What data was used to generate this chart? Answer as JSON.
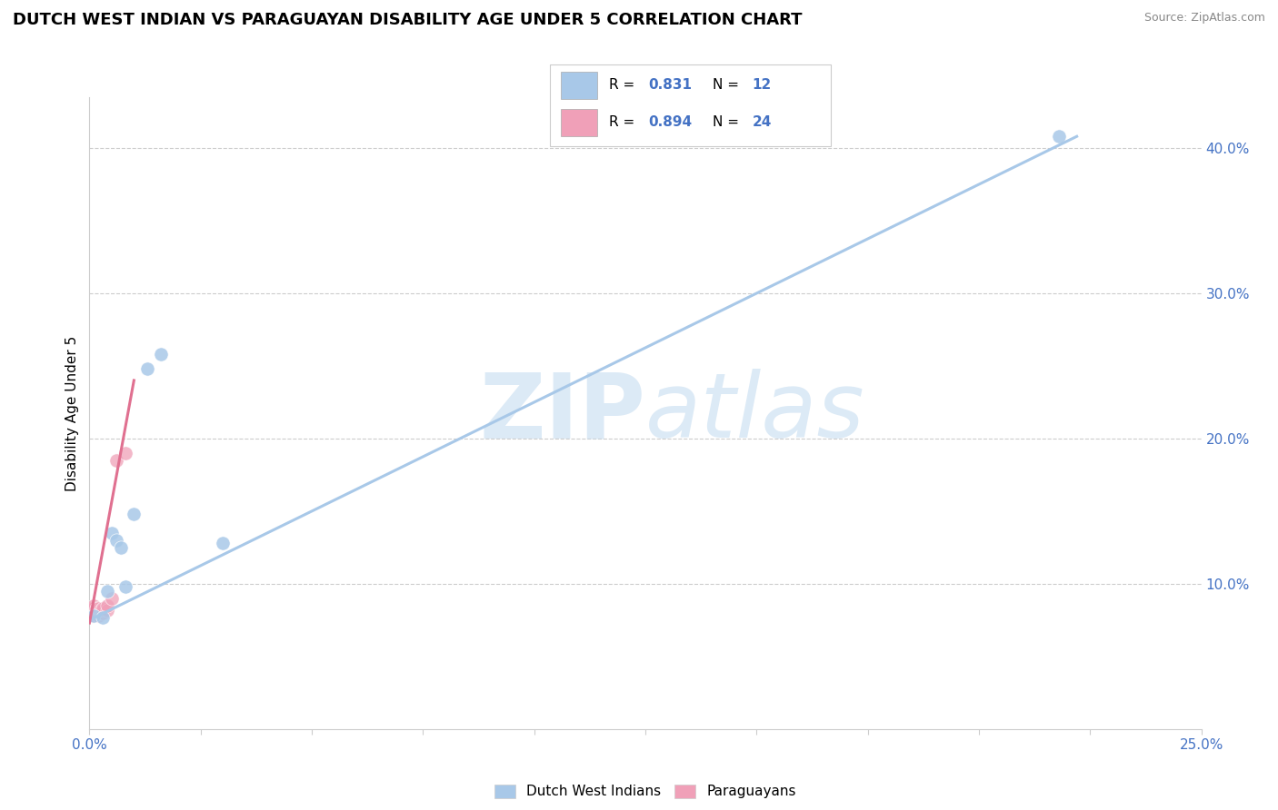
{
  "title": "DUTCH WEST INDIAN VS PARAGUAYAN DISABILITY AGE UNDER 5 CORRELATION CHART",
  "source_text": "Source: ZipAtlas.com",
  "ylabel": "Disability Age Under 5",
  "xlim": [
    0.0,
    0.25
  ],
  "ylim": [
    0.0,
    0.435
  ],
  "xticks": [
    0.0,
    0.025,
    0.05,
    0.075,
    0.1,
    0.125,
    0.15,
    0.175,
    0.2,
    0.225,
    0.25
  ],
  "ytick_right_labels": [
    "10.0%",
    "20.0%",
    "30.0%",
    "40.0%"
  ],
  "ytick_right_vals": [
    0.1,
    0.2,
    0.3,
    0.4
  ],
  "blue_color": "#A8C8E8",
  "pink_color": "#F0A0B8",
  "blue_scatter": [
    [
      0.001,
      0.078
    ],
    [
      0.003,
      0.077
    ],
    [
      0.004,
      0.095
    ],
    [
      0.005,
      0.135
    ],
    [
      0.006,
      0.13
    ],
    [
      0.007,
      0.125
    ],
    [
      0.008,
      0.098
    ],
    [
      0.01,
      0.148
    ],
    [
      0.013,
      0.248
    ],
    [
      0.016,
      0.258
    ],
    [
      0.03,
      0.128
    ],
    [
      0.218,
      0.408
    ]
  ],
  "pink_scatter": [
    [
      0.0005,
      0.082
    ],
    [
      0.0005,
      0.083
    ],
    [
      0.0008,
      0.078
    ],
    [
      0.001,
      0.08
    ],
    [
      0.001,
      0.082
    ],
    [
      0.001,
      0.083
    ],
    [
      0.001,
      0.085
    ],
    [
      0.0015,
      0.08
    ],
    [
      0.0015,
      0.082
    ],
    [
      0.0015,
      0.083
    ],
    [
      0.002,
      0.078
    ],
    [
      0.002,
      0.08
    ],
    [
      0.002,
      0.082
    ],
    [
      0.002,
      0.083
    ],
    [
      0.0025,
      0.08
    ],
    [
      0.0025,
      0.082
    ],
    [
      0.003,
      0.08
    ],
    [
      0.003,
      0.082
    ],
    [
      0.003,
      0.083
    ],
    [
      0.004,
      0.082
    ],
    [
      0.004,
      0.085
    ],
    [
      0.005,
      0.09
    ],
    [
      0.006,
      0.185
    ],
    [
      0.008,
      0.19
    ]
  ],
  "blue_line_x": [
    0.0,
    0.222
  ],
  "blue_line_y": [
    0.075,
    0.408
  ],
  "pink_line_x": [
    0.0,
    0.01
  ],
  "pink_line_y": [
    0.073,
    0.24
  ],
  "R_blue": "0.831",
  "N_blue": "12",
  "R_pink": "0.894",
  "N_pink": "24",
  "legend_blue_label": "Dutch West Indians",
  "legend_pink_label": "Paraguayans",
  "watermark_zip": "ZIP",
  "watermark_atlas": "atlas",
  "background_color": "#ffffff",
  "grid_color": "#cccccc",
  "title_fontsize": 13,
  "axis_label_fontsize": 11,
  "tick_fontsize": 11,
  "scatter_size": 120
}
